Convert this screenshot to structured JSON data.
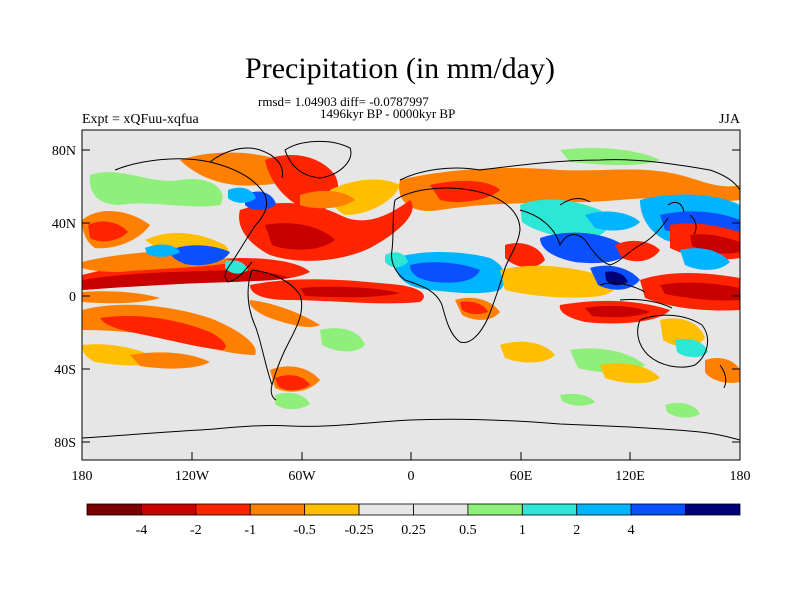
{
  "title": "Precipitation (in mm/day)",
  "stats": "rmsd= 1.04903 diff= -0.0787997",
  "period": "1496kyr BP - 0000kyr BP",
  "experiment": "Expt = xQFuu-xqfua",
  "season": "JJA",
  "map": {
    "lat_ticks": [
      "80N",
      "40N",
      "0",
      "40S",
      "80S"
    ],
    "lon_ticks": [
      "180",
      "120W",
      "60W",
      "0",
      "60E",
      "120E",
      "180"
    ]
  },
  "colorbar": {
    "colors": [
      "#7a0000",
      "#c80000",
      "#ff2400",
      "#ff8000",
      "#ffbe00",
      "#e6e6e6",
      "#e6e6e6",
      "#8ef07a",
      "#2ee6d6",
      "#00b4ff",
      "#0a50ff",
      "#000078"
    ],
    "labels": [
      "-4",
      "-2",
      "-1",
      "-0.5",
      "-0.25",
      "0.25",
      "0.5",
      "1",
      "2",
      "4"
    ]
  }
}
